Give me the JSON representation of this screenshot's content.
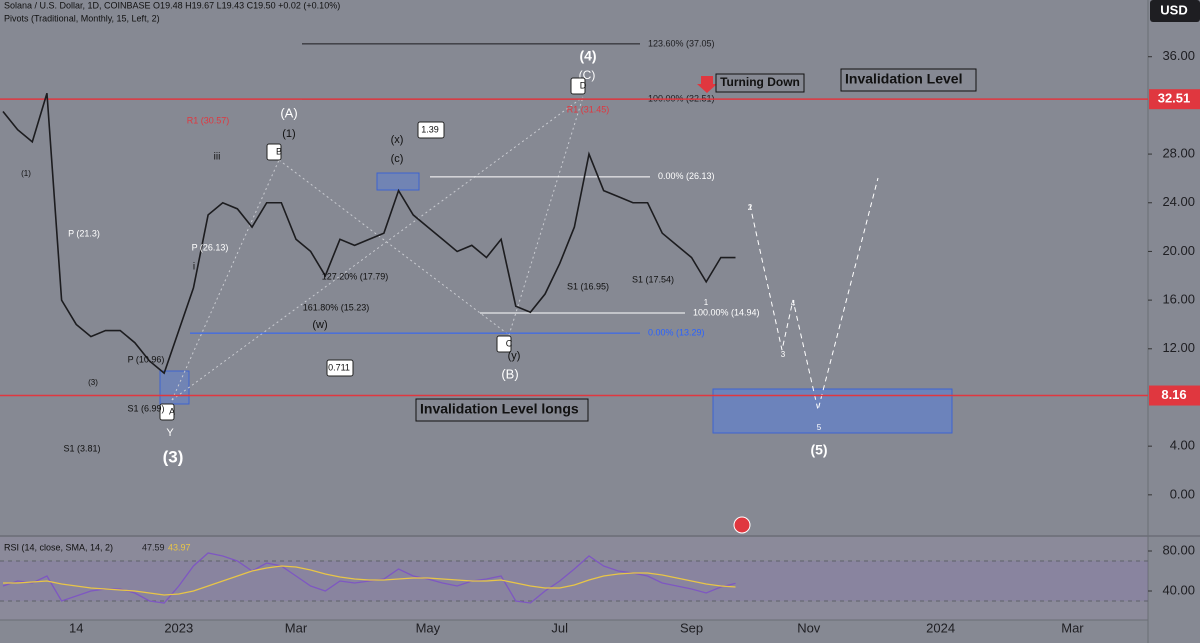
{
  "chart_data": {
    "type": "line",
    "header": "Solana / U.S. Dollar, 1D, COINBASE O19.48 H19.67 L19.43 C19.50 +0.02 (+0.10%)",
    "indicator": "Pivots (Traditional, Monthly, 15, Left, 2)",
    "currency": "USD",
    "categories": [
      null,
      null,
      null,
      null,
      null,
      "14",
      null,
      null,
      null,
      null,
      null,
      null,
      "2023",
      null,
      null,
      null,
      null,
      null,
      null,
      null,
      "Mar",
      null,
      null,
      null,
      null,
      null,
      null,
      null,
      null,
      "May",
      null,
      null,
      null,
      null,
      null,
      null,
      null,
      null,
      "Jul",
      null,
      null,
      null,
      null,
      null,
      null,
      null,
      null,
      "Sep",
      null,
      null,
      null,
      null,
      null,
      null,
      null,
      "Nov",
      null,
      null,
      null,
      null,
      null,
      null,
      null,
      null,
      "2024",
      null,
      null,
      null,
      null,
      null,
      null,
      null,
      null,
      "Mar",
      null,
      null,
      null,
      null
    ],
    "series": [
      {
        "name": "SOL",
        "color": "#1c1c1f",
        "values": [
          31.5,
          30,
          29,
          33,
          16,
          14,
          13,
          13.5,
          13.5,
          12.5,
          11,
          10,
          13.5,
          17,
          23,
          24,
          23.5,
          22,
          24,
          24,
          21,
          20,
          18,
          21,
          20.5,
          21,
          21.5,
          25,
          23,
          22,
          21,
          20,
          20.5,
          19.5,
          21,
          15.5,
          15,
          16.5,
          19,
          22,
          28,
          25,
          24.5,
          24,
          24,
          21.5,
          20.5,
          19.5,
          17.5,
          19.5,
          19.5,
          null,
          null,
          null,
          null,
          null,
          null,
          null,
          null,
          null,
          null,
          null,
          null,
          null,
          null,
          null,
          null,
          null,
          null,
          null,
          null,
          null,
          null,
          null,
          null,
          null,
          null,
          null
        ]
      }
    ],
    "ylim": [
      -3.3,
      40.66
    ],
    "yticks": [
      {
        "value": 0,
        "label": "0.00"
      },
      {
        "value": 4,
        "label": "4.00"
      },
      {
        "value": 12,
        "label": "12.00"
      },
      {
        "value": 16,
        "label": "16.00"
      },
      {
        "value": 20,
        "label": "20.00"
      },
      {
        "value": 24,
        "label": "24.00"
      },
      {
        "value": 28,
        "label": "28.00"
      },
      {
        "value": 36,
        "label": "36.00"
      }
    ],
    "levels": [
      {
        "label": "Invalidation Level",
        "value": 32.51,
        "color": "#e0373f"
      },
      {
        "label": "Invalidation Level longs",
        "value": 8.16,
        "color": "#e0373f"
      }
    ],
    "fib_lines": [
      {
        "label": "123.60% (37.05)",
        "value": 37.05,
        "color": "#1c1c1f"
      },
      {
        "label": "100.00% (32.51)",
        "value": 32.51,
        "color": "#1c1c1f"
      },
      {
        "label": "0.00% (26.13)",
        "value": 26.13,
        "color": "#ffffff"
      },
      {
        "label": "100.00% (14.94)",
        "value": 14.94,
        "color": "#ffffff"
      },
      {
        "label": "0.00% (13.29)",
        "value": 13.29,
        "color": "#2962ff"
      }
    ],
    "annotations": [
      "(4)",
      "(C)",
      "D",
      "(A)",
      "(1)",
      "B",
      "iii",
      "(x)",
      "(c)",
      "1.39",
      "(3)",
      "(5)",
      "(B)",
      "C",
      "(y)",
      "A",
      "0.711",
      "(w)",
      "S1 (3.81)",
      "S1 (6.99)",
      "P (10.96)",
      "P (21.3)",
      "P (26.13)",
      "S1 (16.95)",
      "S1 (17.54)",
      "127.20% (17.79)",
      "161.80% (15.23)",
      "(1)",
      "(3)",
      "Y",
      "R1 (30.57)",
      "R1 (31.45)",
      "5",
      "3",
      "4",
      "2",
      "i",
      "1",
      "Turning Down"
    ],
    "rsi": {
      "title": "RSI (14, close, SMA, 14, 2)",
      "last": "47.59",
      "sma_last": "43.97",
      "ylim": [
        11,
        94
      ],
      "yticks": [
        {
          "value": 40,
          "label": "40.00"
        },
        {
          "value": 80,
          "label": "80.00"
        }
      ],
      "band": [
        30,
        70
      ],
      "series": [
        {
          "name": "RSI",
          "color": "#7e57c2",
          "values": [
            45,
            50,
            48,
            55,
            30,
            35,
            40,
            42,
            42,
            38,
            30,
            28,
            45,
            65,
            78,
            75,
            70,
            60,
            68,
            65,
            55,
            45,
            40,
            50,
            48,
            50,
            52,
            62,
            55,
            52,
            48,
            45,
            50,
            52,
            55,
            30,
            28,
            40,
            50,
            62,
            75,
            65,
            60,
            58,
            55,
            48,
            45,
            42,
            38,
            44,
            47.59,
            null,
            null,
            null,
            null,
            null,
            null,
            null,
            null,
            null,
            null,
            null,
            null,
            null,
            null,
            null,
            null,
            null,
            null,
            null,
            null,
            null,
            null,
            null,
            null,
            null,
            null,
            null
          ]
        },
        {
          "name": "SMA",
          "color": "#e8c547",
          "values": [
            48,
            48,
            49,
            50,
            47,
            45,
            43,
            42,
            41,
            40,
            38,
            36,
            37,
            40,
            45,
            50,
            55,
            60,
            63,
            65,
            64,
            61,
            57,
            54,
            52,
            51,
            51,
            52,
            53,
            53,
            52,
            51,
            50,
            50,
            51,
            48,
            45,
            43,
            43,
            46,
            51,
            55,
            57,
            58,
            58,
            56,
            53,
            50,
            47,
            45,
            43.97,
            null,
            null,
            null,
            null,
            null,
            null,
            null,
            null,
            null,
            null,
            null,
            null,
            null,
            null,
            null,
            null,
            null,
            null,
            null,
            null,
            null,
            null,
            null,
            null,
            null,
            null,
            null
          ]
        }
      ]
    }
  }
}
